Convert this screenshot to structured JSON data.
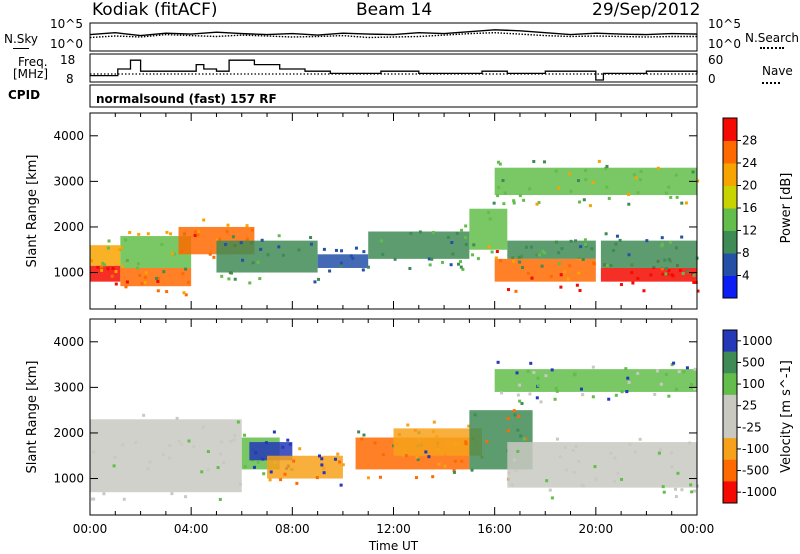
{
  "header": {
    "station": "Kodiak (fitACF)",
    "beam": "Beam 14",
    "date": "29/Sep/2012"
  },
  "status_panels": {
    "nsky_label": "N.Sky",
    "nsearch_label": "N.Search",
    "freq_label": "Freq.",
    "freq_unit": "[MHz]",
    "nave_label": "Nave",
    "cpid_label": "CPID",
    "cpid_value": "normalsound (fast) 157 RF",
    "noise_ticks_left": [
      "10^5",
      "10^0"
    ],
    "noise_ticks_right": [
      "10^5",
      "10^0"
    ],
    "freq_ticks": [
      "18",
      "8"
    ],
    "nave_ticks": [
      "60",
      "0"
    ]
  },
  "chart_data": [
    {
      "type": "heatmap",
      "name": "power-panel",
      "xlabel": "",
      "ylabel": "Slant Range [km]",
      "xlim": [
        0,
        24
      ],
      "ylim": [
        200,
        4500
      ],
      "y_ticks": [
        1000,
        2000,
        3000,
        4000
      ],
      "colorbar_label": "Power [dB]",
      "colorbar_ticks": [
        4,
        8,
        12,
        16,
        20,
        24,
        28
      ],
      "colorbar_colors": [
        "#0b1ff5",
        "#2450a8",
        "#3f8b55",
        "#62bd4a",
        "#c8d400",
        "#f8a400",
        "#ff6a00",
        "#f40a00"
      ],
      "band_colors": [
        "#f40a00",
        "#ff6a00",
        "#f8a400",
        "#62bd4a",
        "#3f8b55",
        "#2450a8"
      ],
      "bands": [
        {
          "t0": 0.0,
          "t1": 1.2,
          "r0": 800,
          "r1": 1150,
          "level": 0
        },
        {
          "t0": 0.0,
          "t1": 1.2,
          "r0": 1150,
          "r1": 1600,
          "level": 2
        },
        {
          "t0": 1.2,
          "t1": 4.0,
          "r0": 700,
          "r1": 1100,
          "level": 1
        },
        {
          "t0": 1.2,
          "t1": 4.0,
          "r0": 1100,
          "r1": 1800,
          "level": 3
        },
        {
          "t0": 3.5,
          "t1": 6.5,
          "r0": 1400,
          "r1": 2000,
          "level": 1
        },
        {
          "t0": 5.0,
          "t1": 9.0,
          "r0": 1000,
          "r1": 1700,
          "level": 4
        },
        {
          "t0": 9.0,
          "t1": 11.0,
          "r0": 1100,
          "r1": 1400,
          "level": 5
        },
        {
          "t0": 11.0,
          "t1": 15.0,
          "r0": 1300,
          "r1": 1900,
          "level": 4
        },
        {
          "t0": 15.0,
          "t1": 16.5,
          "r0": 1500,
          "r1": 2400,
          "level": 3
        },
        {
          "t0": 16.0,
          "t1": 20.0,
          "r0": 800,
          "r1": 1300,
          "level": 1
        },
        {
          "t0": 16.5,
          "t1": 20.0,
          "r0": 1300,
          "r1": 1700,
          "level": 4
        },
        {
          "t0": 20.2,
          "t1": 24.0,
          "r0": 800,
          "r1": 1100,
          "level": 0
        },
        {
          "t0": 20.2,
          "t1": 24.0,
          "r0": 1100,
          "r1": 1700,
          "level": 4
        },
        {
          "t0": 16.0,
          "t1": 24.0,
          "r0": 2700,
          "r1": 3300,
          "level": 3
        }
      ]
    },
    {
      "type": "heatmap",
      "name": "velocity-panel",
      "xlabel": "Time UT",
      "ylabel": "Slant Range [km]",
      "xlim": [
        0,
        24
      ],
      "ylim": [
        200,
        4500
      ],
      "y_ticks": [
        1000,
        2000,
        3000,
        4000
      ],
      "x_ticks": [
        "00:00",
        "04:00",
        "08:00",
        "12:00",
        "16:00",
        "20:00",
        "00:00"
      ],
      "colorbar_label": "Velocity [m s^-1]",
      "colorbar_ticks": [
        1000,
        500,
        100,
        25,
        -25,
        -100,
        -500,
        -1000
      ],
      "colorbar_colors": [
        "#2438b8",
        "#3f8b55",
        "#62bd4a",
        "#c9c9c2",
        "#c9c9c2",
        "#f7a11a",
        "#ff6a00",
        "#f40a00"
      ],
      "band_colors": [
        "#c9c9c2",
        "#62bd4a",
        "#2438b8",
        "#f7a11a",
        "#ff6a00",
        "#3f8b55"
      ],
      "bands": [
        {
          "t0": 0.0,
          "t1": 6.0,
          "r0": 700,
          "r1": 2300,
          "level": 0
        },
        {
          "t0": 6.0,
          "t1": 7.5,
          "r0": 1200,
          "r1": 1900,
          "level": 1
        },
        {
          "t0": 6.3,
          "t1": 8.0,
          "r0": 1400,
          "r1": 1800,
          "level": 2
        },
        {
          "t0": 7.0,
          "t1": 10.0,
          "r0": 1000,
          "r1": 1500,
          "level": 3
        },
        {
          "t0": 10.5,
          "t1": 15.0,
          "r0": 1200,
          "r1": 1900,
          "level": 4
        },
        {
          "t0": 12.0,
          "t1": 15.5,
          "r0": 1500,
          "r1": 2100,
          "level": 3
        },
        {
          "t0": 15.0,
          "t1": 17.5,
          "r0": 1200,
          "r1": 2500,
          "level": 5
        },
        {
          "t0": 16.5,
          "t1": 24.0,
          "r0": 800,
          "r1": 1800,
          "level": 0
        },
        {
          "t0": 16.0,
          "t1": 24.0,
          "r0": 2900,
          "r1": 3400,
          "level": 1
        }
      ]
    }
  ],
  "noise_series": {
    "sky": [
      3,
      3.4,
      2.8,
      3.3,
      3.1,
      3.5,
      3.2,
      3.0,
      3.2,
      2.9,
      3.3,
      3.1,
      3.0,
      3.4,
      3.2,
      3.6,
      4.0,
      3.8,
      3.4,
      3.0,
      3.3,
      3.1,
      3.0,
      3.2,
      3.1
    ],
    "search": [
      2.4,
      2.7,
      2.5,
      3.0,
      2.8,
      2.6,
      2.9,
      2.7,
      2.5,
      2.6,
      2.8,
      2.4,
      2.5,
      2.6,
      2.9,
      3.2,
      3.4,
      3.1,
      2.8,
      2.6,
      2.7,
      2.6,
      2.5,
      2.6,
      2.6
    ]
  },
  "freq_series": {
    "t": [
      0,
      1.0,
      1.1,
      1.5,
      1.6,
      2.0,
      4.0,
      4.2,
      4.5,
      5.0,
      5.5,
      6.5,
      7.5,
      8.5,
      9.5,
      11.5,
      13.0,
      15.5,
      16.5,
      18.0,
      20.0,
      20.3,
      22.0,
      24
    ],
    "f": [
      10,
      10,
      13,
      13,
      17,
      12,
      12,
      15,
      13,
      12,
      17,
      15,
      13,
      12,
      11,
      12,
      11,
      12,
      11,
      12,
      8,
      11,
      12,
      11
    ]
  }
}
